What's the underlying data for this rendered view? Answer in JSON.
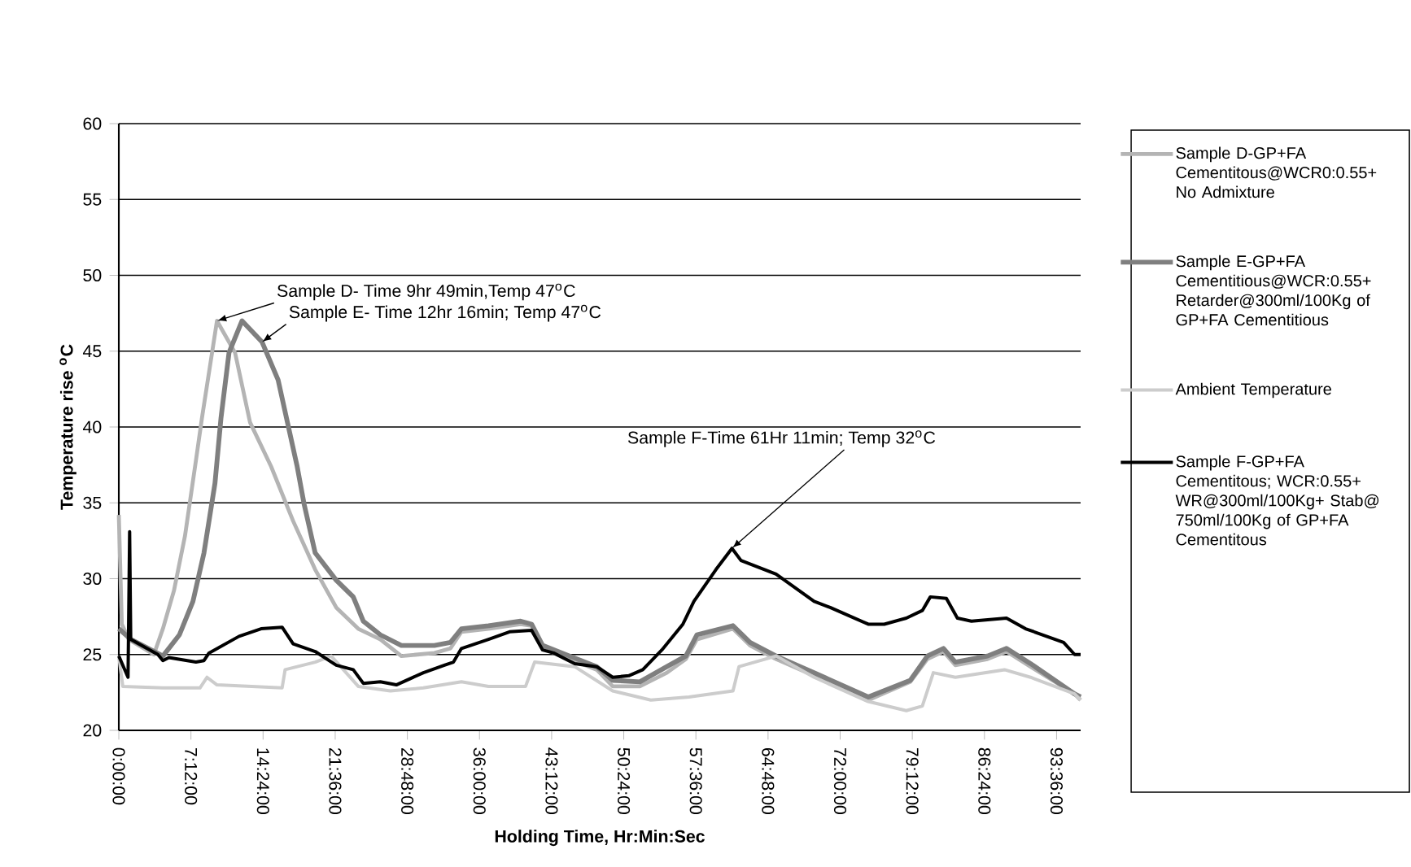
{
  "chart_data": {
    "type": "line",
    "xlabel": "Holding Time, Hr:Min:Sec",
    "ylabel": "Temperature rise $^{o}$C",
    "xlim": [
      0,
      96
    ],
    "ylim": [
      20,
      60
    ],
    "xticks": [
      {
        "value": 0,
        "label": "0:00:00"
      },
      {
        "value": 7.2,
        "label": "7:12:00"
      },
      {
        "value": 14.4,
        "label": "14:24:00"
      },
      {
        "value": 21.6,
        "label": "21:36:00"
      },
      {
        "value": 28.8,
        "label": "28:48:00"
      },
      {
        "value": 36,
        "label": "36:00:00"
      },
      {
        "value": 43.2,
        "label": "43:12:00"
      },
      {
        "value": 50.4,
        "label": "50:24:00"
      },
      {
        "value": 57.6,
        "label": "57:36:00"
      },
      {
        "value": 64.8,
        "label": "64:48:00"
      },
      {
        "value": 72,
        "label": "72:00:00"
      },
      {
        "value": 79.2,
        "label": "79:12:00"
      },
      {
        "value": 86.4,
        "label": "86:24:00"
      },
      {
        "value": 93.6,
        "label": "93:36:00"
      }
    ],
    "yticks": [
      20,
      25,
      30,
      35,
      40,
      45,
      50,
      55,
      60
    ],
    "grid": "y",
    "legend": "right",
    "marker": "none",
    "annotations": [
      {
        "text": "Sample D- Time 9hr 49min,Temp 47$^{o}$C",
        "x": 9.8,
        "y": 47
      },
      {
        "text": "Sample E- Time 12hr 16min; Temp 47$^{o}$C",
        "x": 14.3,
        "y": 45.6
      },
      {
        "text": "Sample F-Time 61Hr 11min; Temp 32$^{o}$C",
        "x": 61.2,
        "y": 32
      }
    ],
    "series": [
      {
        "name": "Sample D-GP+FA Cementitous@WCR0:0.55+ No Admixture",
        "color": "#b4b4b4",
        "x": [
          0,
          0.3,
          1,
          3.5,
          4.4,
          5.5,
          6.6,
          7.7,
          8.3,
          9.8,
          11.6,
          13.1,
          15.2,
          17.4,
          19.6,
          21.7,
          23.9,
          26.1,
          28.2,
          31.5,
          33.1,
          34.2,
          36.9,
          40.1,
          41.2,
          42.3,
          45,
          47.7,
          49.3,
          52,
          54.7,
          56.6,
          57.7,
          61.3,
          63,
          65.6,
          69.4,
          74.8,
          79,
          80.7,
          82.3,
          83.5,
          86.7,
          88.6,
          91,
          95.4,
          96
        ],
        "values": [
          34.2,
          27,
          26,
          25,
          26.7,
          29.2,
          32.8,
          37.8,
          40.6,
          47,
          44.9,
          40.3,
          37.4,
          33.8,
          30.6,
          28.1,
          26.7,
          26,
          24.9,
          25.1,
          25.4,
          26.5,
          26.7,
          27,
          26.9,
          25.4,
          24.7,
          24,
          22.9,
          22.9,
          23.8,
          24.7,
          26,
          26.7,
          25.6,
          24.7,
          23.6,
          22,
          23.2,
          24.7,
          25.2,
          24.3,
          24.7,
          25.2,
          24.2,
          22.4,
          22
        ]
      },
      {
        "name": "Sample E-GP+FA Cementitious@WCR:0.55+ Retarder@300ml/100Kg of GP+FA Cementitious",
        "color": "#7f7f7f",
        "x": [
          0,
          1.2,
          4.4,
          6.05,
          7.4,
          8.5,
          9.6,
          10.2,
          11,
          12.3,
          14.3,
          15.9,
          17.8,
          18.5,
          19.6,
          21.7,
          23.4,
          24.4,
          26.1,
          28.2,
          31.5,
          33.1,
          34.2,
          36.9,
          40.1,
          41.2,
          42.3,
          45,
          47.7,
          49.3,
          52,
          54.7,
          56.6,
          57.7,
          61.3,
          63,
          65.6,
          69.4,
          74.8,
          79,
          80.7,
          82.3,
          83.5,
          86.7,
          88.6,
          91,
          95.4,
          96
        ],
        "values": [
          26.7,
          26,
          24.9,
          26.3,
          28.5,
          31.7,
          36.3,
          40.6,
          44.9,
          47,
          45.6,
          43.1,
          37.4,
          34.9,
          31.7,
          29.9,
          28.8,
          27.2,
          26.3,
          25.6,
          25.6,
          25.8,
          26.7,
          26.9,
          27.2,
          27,
          25.6,
          24.9,
          24.2,
          23.3,
          23.2,
          24.2,
          24.9,
          26.3,
          26.9,
          25.8,
          24.9,
          23.8,
          22.2,
          23.3,
          24.9,
          25.4,
          24.5,
          24.9,
          25.4,
          24.4,
          22.4,
          22.2
        ]
      },
      {
        "name": "Ambient Temperature",
        "color": "#cccccc",
        "x": [
          0,
          0.4,
          4.4,
          8.1,
          8.8,
          9.8,
          16.3,
          16.6,
          19.6,
          21.2,
          23.9,
          27.1,
          30.4,
          34.2,
          36.9,
          40.6,
          41.5,
          45.5,
          49.3,
          53.1,
          56.9,
          61.3,
          61.9,
          65.6,
          69.4,
          74.8,
          78.6,
          80.2,
          81.3,
          83.5,
          88.4,
          91,
          95.4,
          96
        ],
        "values": [
          24.9,
          22.9,
          22.8,
          22.8,
          23.5,
          23,
          22.8,
          24,
          24.5,
          24.9,
          22.9,
          22.6,
          22.8,
          23.2,
          22.9,
          22.9,
          24.5,
          24.2,
          22.6,
          22,
          22.2,
          22.6,
          24.2,
          24.9,
          23.5,
          21.9,
          21.3,
          21.6,
          23.8,
          23.5,
          24,
          23.5,
          22.4,
          22
        ]
      },
      {
        "name": "Sample F-GP+FA Cementitous; WCR:0.55+ WR@300ml/100Kg+ Stab@ 750ml/100Kg of GP+FA Cementitous",
        "color": "#000000",
        "x": [
          0,
          0.92,
          1.08,
          1.19,
          3.9,
          4.4,
          5,
          7.7,
          8.5,
          9,
          12,
          14.2,
          16.3,
          17.4,
          19.6,
          21.7,
          23.4,
          24.4,
          26.1,
          27.7,
          30.4,
          32.5,
          33.4,
          34.2,
          36.9,
          39,
          41.2,
          42.3,
          43.4,
          45.5,
          47.7,
          49.3,
          50.9,
          52.3,
          54.2,
          56.3,
          57.4,
          59.6,
          61.2,
          62.1,
          65.6,
          69.4,
          71,
          74.8,
          76.4,
          78.6,
          80.2,
          81,
          82.6,
          83.7,
          85.1,
          88.6,
          90.5,
          94.3,
          95.4,
          96
        ],
        "values": [
          24.9,
          23.5,
          33.1,
          26,
          25,
          24.6,
          24.8,
          24.5,
          24.6,
          25.1,
          26.2,
          26.7,
          26.8,
          25.7,
          25.2,
          24.3,
          24,
          23.1,
          23.2,
          23,
          23.8,
          24.3,
          24.5,
          25.4,
          26,
          26.5,
          26.6,
          25.3,
          25.1,
          24.4,
          24.2,
          23.5,
          23.6,
          24,
          25.3,
          27,
          28.5,
          30.6,
          32,
          31.2,
          30.3,
          28.5,
          28.1,
          27,
          27,
          27.4,
          27.9,
          28.8,
          28.7,
          27.4,
          27.2,
          27.4,
          26.7,
          25.8,
          25,
          25
        ]
      }
    ]
  }
}
